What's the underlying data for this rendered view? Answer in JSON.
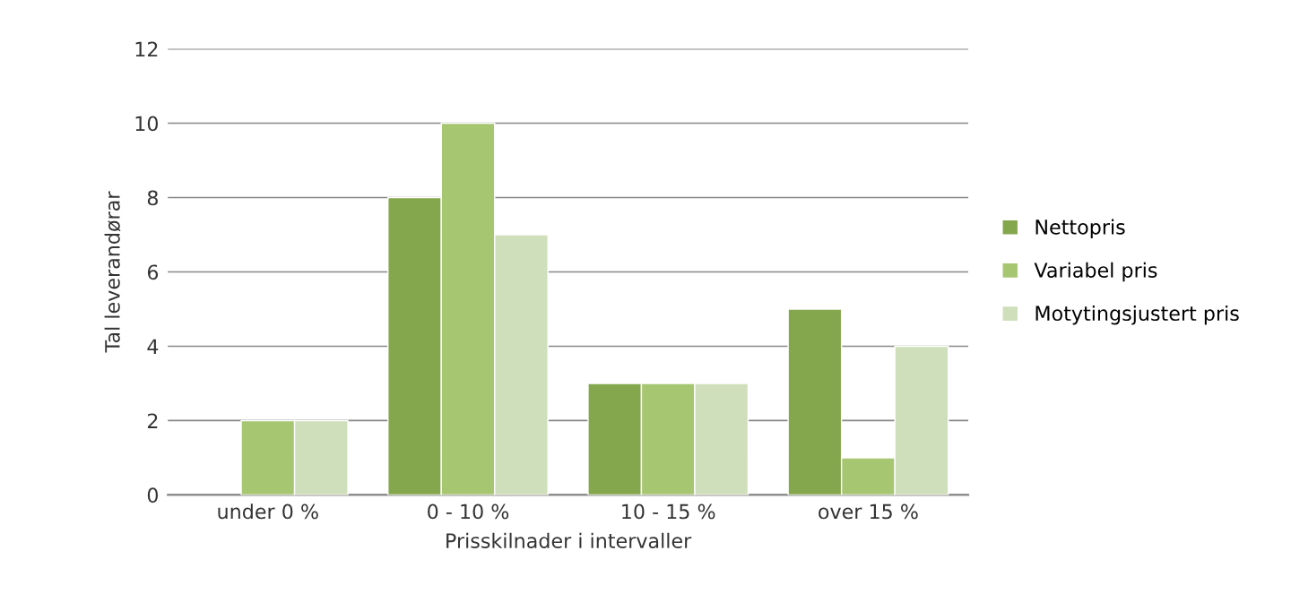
{
  "chart_data": {
    "type": "bar",
    "xlabel": "Prisskilnader i intervaller",
    "ylabel": "Tal leverandørar",
    "categories": [
      "under 0 %",
      "0 - 10 %",
      "10 - 15 %",
      "over 15 %"
    ],
    "series": [
      {
        "name": "Nettopris",
        "color": "#84a74e",
        "values": [
          null,
          8,
          3,
          5
        ]
      },
      {
        "name": "Variabel pris",
        "color": "#a6c672",
        "values": [
          2,
          10,
          3,
          1
        ]
      },
      {
        "name": "Motytingsjustert pris",
        "color": "#d0dfbb",
        "values": [
          2,
          7,
          3,
          4
        ]
      }
    ],
    "ylim": [
      0,
      12
    ],
    "yticks": [
      0,
      2,
      4,
      6,
      8,
      10,
      12
    ],
    "grid": "y",
    "legend": "right"
  }
}
